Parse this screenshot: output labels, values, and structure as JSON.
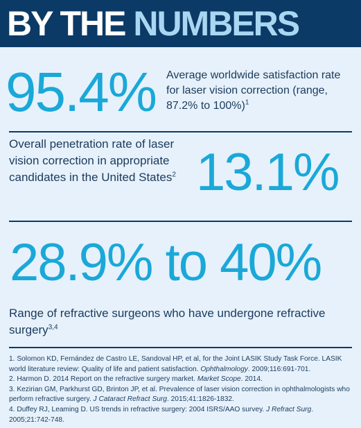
{
  "header": {
    "title_part1": "BY THE ",
    "title_part2": "NUMBERS"
  },
  "stat1": {
    "value": "95.4%",
    "description": "Average worldwide satisfaction rate for laser vision correction (range, 87.2% to 100%)",
    "sup": "1"
  },
  "stat2": {
    "value": "13.1%",
    "description": "Overall penetration rate of laser vision correction in appropriate candidates in the United States",
    "sup": "2"
  },
  "stat3": {
    "value": "28.9% to 40%",
    "description": "Range of refractive surgeons who have undergone refractive surgery",
    "sup": "3,4"
  },
  "references": [
    {
      "num": "1.",
      "text": "Solomon KD, Fernández de Castro LE, Sandoval HP, et al, for the Joint LASIK Study Task Force. LASIK world literature review: Quality of life and patient satisfaction. ",
      "journal": "Ophthalmology",
      "end": ". 2009;116:691-701."
    },
    {
      "num": "2.",
      "text": "Harmon D. 2014 Report on the refractive surgery market. ",
      "journal": "Market Scope",
      "end": ". 2014."
    },
    {
      "num": "3.",
      "text": "Kezirian GM, Parkhurst GD, Brinton JP, et al. Prevalence of laser vision correction in ophthalmologists who perform refractive surgery. ",
      "journal": "J Cataract Refract Surg",
      "end": ". 2015;41:1826-1832."
    },
    {
      "num": "4.",
      "text": "Duffey RJ, Leaming D. US trends in refractive surgery: 2004 ISRS/AAO survey. ",
      "journal": "J Refract Surg",
      "end": ". 2005;21:742-748."
    }
  ],
  "colors": {
    "header_bg": "#0c3a66",
    "accent": "#1aa8d8",
    "page_bg": "#e6f1fb",
    "title_light": "#a9d7f2"
  }
}
